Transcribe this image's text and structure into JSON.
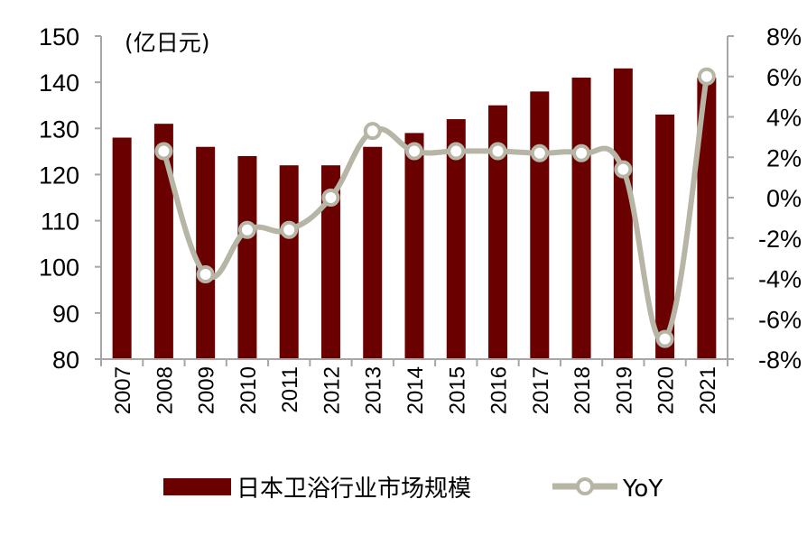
{
  "chart_data": {
    "type": "bar",
    "categories": [
      "2007",
      "2008",
      "2009",
      "2010",
      "2011",
      "2012",
      "2013",
      "2014",
      "2015",
      "2016",
      "2017",
      "2018",
      "2019",
      "2020",
      "2021"
    ],
    "series": [
      {
        "name": "日本卫浴行业市场规模",
        "type": "bar",
        "axis": "left",
        "color": "#6b0000",
        "values": [
          128,
          131,
          126,
          124,
          122,
          122,
          126,
          129,
          132,
          135,
          138,
          141,
          143,
          133,
          141
        ]
      },
      {
        "name": "YoY",
        "type": "line",
        "axis": "right",
        "color": "#b7b6a6",
        "values": [
          null,
          2.3,
          -3.8,
          -1.6,
          -1.6,
          0.0,
          3.3,
          2.3,
          2.3,
          2.3,
          2.2,
          2.2,
          1.4,
          -7.0,
          6.0
        ]
      }
    ],
    "left_unit": "(亿日元)",
    "left_ticks": [
      "150",
      "140",
      "130",
      "120",
      "110",
      "100",
      "90",
      "80"
    ],
    "right_ticks": [
      "8%",
      "6%",
      "4%",
      "2%",
      "0%",
      "-2%",
      "-4%",
      "-6%",
      "-8%"
    ],
    "ylim": [
      80,
      150
    ],
    "y2lim": [
      -8,
      8
    ],
    "grid": false,
    "legend_position": "bottom"
  }
}
